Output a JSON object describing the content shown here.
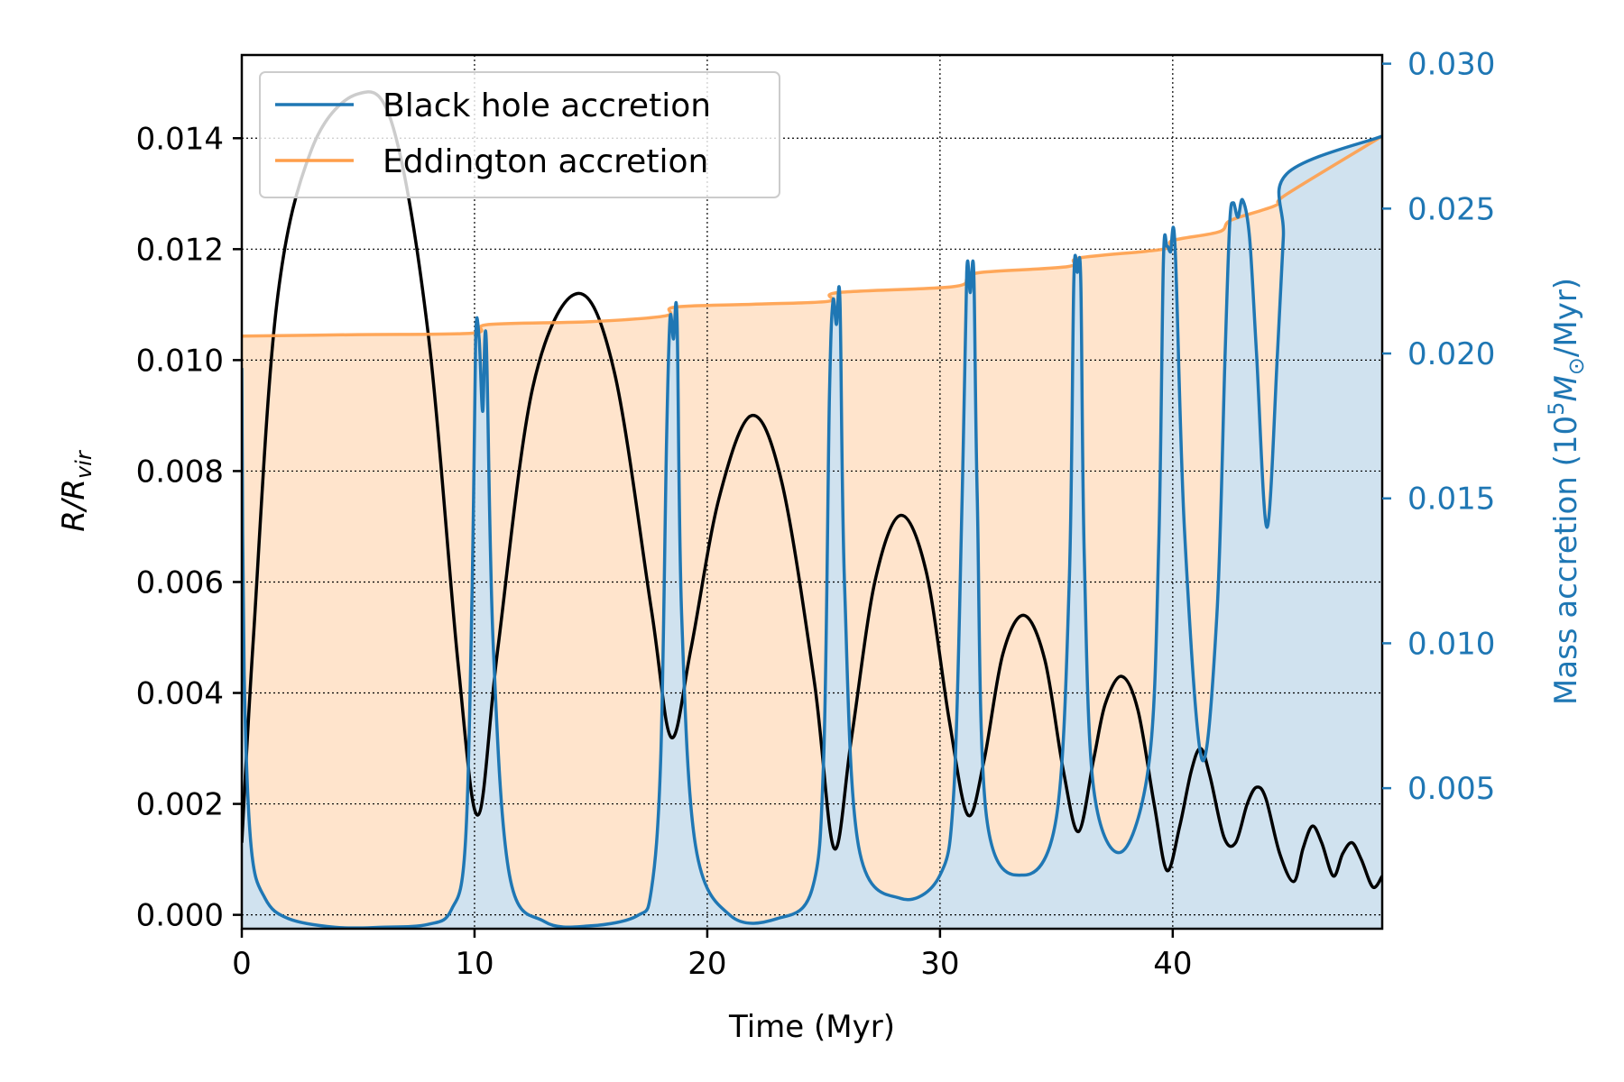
{
  "chart_data": {
    "type": "line",
    "xlabel": "Time (Myr)",
    "ylabel": "R/R_vir",
    "ylabel_main": "R/R",
    "ylabel_sub": "vir",
    "y2label": "Mass accretion (10^5 M_⊙/Myr)",
    "y2label_prefix": "Mass accretion (10",
    "y2label_exp": "5",
    "y2label_m": "M",
    "y2label_sun": "⊙",
    "y2label_suffix": "/Myr)",
    "xlim": [
      0,
      49
    ],
    "ylim": [
      -0.00025,
      0.0155
    ],
    "y2lim": [
      0.00015,
      0.0303
    ],
    "xticks": [
      0,
      10,
      20,
      30,
      40
    ],
    "xtick_labels": [
      "0",
      "10",
      "20",
      "30",
      "40"
    ],
    "yticks": [
      0.0,
      0.002,
      0.004,
      0.006,
      0.008,
      0.01,
      0.012,
      0.014
    ],
    "ytick_labels": [
      "0.000",
      "0.002",
      "0.004",
      "0.006",
      "0.008",
      "0.010",
      "0.012",
      "0.014"
    ],
    "y2ticks": [
      0.005,
      0.01,
      0.015,
      0.02,
      0.025,
      0.03
    ],
    "y2tick_labels": [
      "0.005",
      "0.010",
      "0.015",
      "0.020",
      "0.025",
      "0.030"
    ],
    "grid": true,
    "legend_position": "top-left",
    "colors": {
      "bh": "#1f77b4",
      "edd": "#ff9e4a",
      "edd_fill": "#ffe4cc",
      "bh_fill": "#d0e2ef",
      "radius": "#000000",
      "right_axis": "#1f77b4"
    },
    "series": [
      {
        "name": "Black hole accretion",
        "axis": "right",
        "color": "#1f77b4",
        "x": [
          0,
          0.1,
          0.4,
          1,
          2,
          4,
          6,
          8,
          9.0,
          9.6,
          9.9,
          10.05,
          10.2,
          10.35,
          10.5,
          10.8,
          11.5,
          13,
          15,
          17,
          17.6,
          18.0,
          18.25,
          18.4,
          18.55,
          18.7,
          18.9,
          19.5,
          21,
          23,
          24.5,
          25.0,
          25.25,
          25.4,
          25.55,
          25.7,
          25.9,
          26.5,
          28.3,
          30.0,
          30.6,
          30.95,
          31.15,
          31.3,
          31.45,
          31.6,
          32.0,
          33.6,
          35.0,
          35.55,
          35.75,
          35.9,
          36.05,
          36.2,
          36.6,
          37.8,
          39.0,
          39.4,
          39.6,
          39.75,
          39.9,
          40.1,
          40.5,
          41.25,
          41.9,
          42.25,
          42.45,
          42.6,
          42.8,
          43.0,
          43.3,
          43.6,
          44.05,
          44.5,
          44.75,
          44.9,
          49
        ],
        "y": [
          0.0195,
          0.009,
          0.003,
          0.0012,
          0.0005,
          0.0002,
          0.0002,
          0.0003,
          0.0008,
          0.003,
          0.012,
          0.0205,
          0.0205,
          0.018,
          0.0205,
          0.01,
          0.002,
          0.0004,
          0.00025,
          0.0006,
          0.0015,
          0.006,
          0.017,
          0.0212,
          0.0205,
          0.0212,
          0.011,
          0.003,
          0.0006,
          0.0005,
          0.0015,
          0.006,
          0.0185,
          0.0218,
          0.021,
          0.0218,
          0.012,
          0.003,
          0.0012,
          0.002,
          0.005,
          0.015,
          0.0228,
          0.0221,
          0.0228,
          0.015,
          0.004,
          0.002,
          0.004,
          0.012,
          0.0225,
          0.0228,
          0.0225,
          0.013,
          0.005,
          0.0028,
          0.006,
          0.0135,
          0.0232,
          0.0237,
          0.0235,
          0.0237,
          0.014,
          0.006,
          0.011,
          0.02,
          0.0245,
          0.0252,
          0.0247,
          0.0253,
          0.024,
          0.02,
          0.014,
          0.02,
          0.024,
          0.0262,
          0.0275
        ]
      },
      {
        "name": "Eddington accretion",
        "axis": "right",
        "color": "#ff9e4a",
        "x": [
          0,
          5,
          9.9,
          10.6,
          15,
          18.2,
          18.6,
          22,
          25.2,
          25.6,
          30.5,
          31.2,
          31.8,
          35.5,
          36.0,
          39.6,
          40.0,
          42.0,
          42.5,
          44.4,
          44.9,
          49
        ],
        "y": [
          0.0206,
          0.02065,
          0.0207,
          0.021,
          0.0211,
          0.0213,
          0.0216,
          0.0217,
          0.0218,
          0.0221,
          0.0223,
          0.0226,
          0.0228,
          0.023,
          0.0233,
          0.0236,
          0.0239,
          0.0242,
          0.0246,
          0.0251,
          0.0255,
          0.0275
        ]
      },
      {
        "axis": "left",
        "color": "#000000",
        "x": [
          0,
          0.5,
          1.5,
          3,
          5.0,
          6.5,
          8,
          9.3,
          10.15,
          11,
          12.5,
          14.4,
          16,
          17.6,
          18.45,
          19.3,
          20.5,
          21.9,
          23.2,
          24.6,
          25.45,
          26.2,
          27.2,
          28.3,
          29.4,
          30.4,
          31.2,
          31.9,
          32.7,
          33.6,
          34.5,
          35.3,
          35.95,
          36.6,
          37.1,
          37.8,
          38.5,
          39.2,
          39.75,
          40.3,
          40.8,
          41.2,
          41.6,
          42.2,
          42.7,
          43.2,
          43.6,
          44.0,
          44.6,
          45.2,
          45.6,
          46.0,
          46.4,
          46.9,
          47.3,
          47.7,
          48.1,
          48.6,
          49
        ],
        "y": [
          0.0013,
          0.005,
          0.011,
          0.0138,
          0.0148,
          0.0142,
          0.0105,
          0.0045,
          0.0018,
          0.0048,
          0.0095,
          0.0112,
          0.0098,
          0.0055,
          0.0032,
          0.0048,
          0.0075,
          0.009,
          0.0078,
          0.0042,
          0.0012,
          0.0032,
          0.006,
          0.0072,
          0.0062,
          0.0035,
          0.0018,
          0.0028,
          0.0047,
          0.0054,
          0.0046,
          0.0026,
          0.0015,
          0.0028,
          0.0038,
          0.0043,
          0.0037,
          0.002,
          0.0008,
          0.0016,
          0.0026,
          0.003,
          0.0025,
          0.0014,
          0.0013,
          0.002,
          0.0023,
          0.0021,
          0.0011,
          0.0006,
          0.0012,
          0.0016,
          0.0013,
          0.0007,
          0.0011,
          0.0013,
          0.001,
          0.0005,
          0.0007
        ]
      }
    ]
  }
}
